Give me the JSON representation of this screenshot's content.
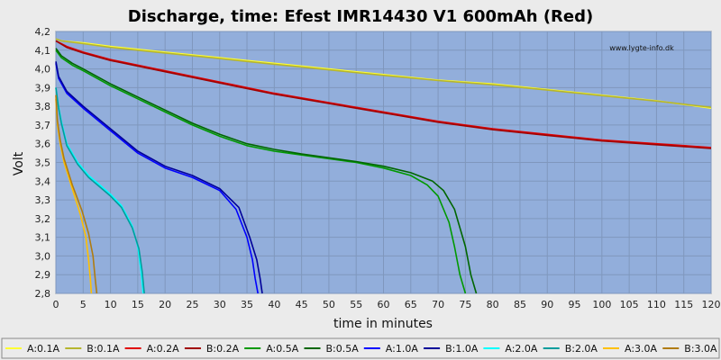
{
  "chart_data": {
    "type": "line",
    "title": "Discharge, time: Efest IMR14430 V1 600mAh (Red)",
    "watermark": "www.lygte-info.dk",
    "xlabel": "time in minutes",
    "ylabel": "Volt",
    "xlim": [
      0,
      120
    ],
    "ylim": [
      2.8,
      4.2
    ],
    "xticks": [
      0,
      5,
      10,
      15,
      20,
      25,
      30,
      35,
      40,
      45,
      50,
      55,
      60,
      65,
      70,
      75,
      80,
      85,
      90,
      95,
      100,
      105,
      110,
      115,
      120
    ],
    "yticks": [
      2.8,
      2.9,
      3.0,
      3.1,
      3.2,
      3.3,
      3.4,
      3.5,
      3.6,
      3.7,
      3.8,
      3.9,
      4.0,
      4.1,
      4.2
    ],
    "ytick_labels": [
      "2,8",
      "2,9",
      "3,0",
      "3,1",
      "3,2",
      "3,3",
      "3,4",
      "3,5",
      "3,6",
      "3,7",
      "3,8",
      "3,9",
      "4,0",
      "4,1",
      "4,2"
    ],
    "grid": true,
    "plot_bg": "#92aedb",
    "legend_position": "bottom",
    "series": [
      {
        "name": "A:0.1A",
        "color": "#ffff33",
        "x": [
          0,
          1,
          5,
          10,
          20,
          30,
          40,
          50,
          60,
          70,
          80,
          90,
          100,
          110,
          120
        ],
        "y": [
          4.16,
          4.15,
          4.14,
          4.12,
          4.09,
          4.06,
          4.03,
          4.0,
          3.97,
          3.94,
          3.92,
          3.89,
          3.86,
          3.83,
          3.79
        ]
      },
      {
        "name": "B:0.1A",
        "color": "#b5b52f",
        "x": [
          0,
          1,
          5,
          10,
          20,
          30,
          40,
          50,
          60,
          70,
          80,
          90,
          100,
          110,
          120
        ],
        "y": [
          4.16,
          4.15,
          4.135,
          4.115,
          4.085,
          4.055,
          4.025,
          3.995,
          3.965,
          3.938,
          3.915,
          3.887,
          3.857,
          3.828,
          3.795
        ]
      },
      {
        "name": "A:0.2A",
        "color": "#e00000",
        "x": [
          0,
          2,
          5,
          10,
          20,
          30,
          40,
          50,
          60,
          70,
          80,
          90,
          100,
          110,
          120
        ],
        "y": [
          4.15,
          4.12,
          4.09,
          4.05,
          3.99,
          3.93,
          3.87,
          3.82,
          3.77,
          3.72,
          3.68,
          3.65,
          3.62,
          3.6,
          3.58
        ]
      },
      {
        "name": "B:0.2A",
        "color": "#a00000",
        "x": [
          0,
          2,
          5,
          10,
          20,
          30,
          40,
          50,
          60,
          70,
          80,
          90,
          100,
          110,
          120
        ],
        "y": [
          4.15,
          4.115,
          4.085,
          4.045,
          3.985,
          3.925,
          3.865,
          3.815,
          3.765,
          3.715,
          3.675,
          3.645,
          3.615,
          3.595,
          3.575
        ]
      },
      {
        "name": "A:0.5A",
        "color": "#009900",
        "x": [
          0,
          1,
          3,
          5,
          10,
          15,
          20,
          25,
          30,
          35,
          40,
          45,
          50,
          55,
          60,
          65,
          68,
          70,
          72,
          73,
          74,
          75
        ],
        "y": [
          4.1,
          4.06,
          4.02,
          3.99,
          3.91,
          3.84,
          3.77,
          3.7,
          3.64,
          3.59,
          3.56,
          3.54,
          3.52,
          3.5,
          3.47,
          3.43,
          3.38,
          3.32,
          3.18,
          3.05,
          2.9,
          2.8
        ]
      },
      {
        "name": "B:0.5A",
        "color": "#006600",
        "x": [
          0,
          1,
          3,
          5,
          10,
          15,
          20,
          25,
          30,
          35,
          40,
          45,
          50,
          55,
          60,
          65,
          69,
          71,
          73,
          75,
          76,
          77
        ],
        "y": [
          4.11,
          4.07,
          4.03,
          4.0,
          3.92,
          3.85,
          3.78,
          3.71,
          3.65,
          3.6,
          3.57,
          3.545,
          3.525,
          3.505,
          3.48,
          3.445,
          3.4,
          3.35,
          3.25,
          3.05,
          2.9,
          2.8
        ]
      },
      {
        "name": "A:1.0A",
        "color": "#0000ff",
        "x": [
          0,
          0.5,
          2,
          5,
          10,
          15,
          20,
          25,
          30,
          33,
          35,
          36,
          36.5,
          37
        ],
        "y": [
          4.03,
          3.95,
          3.87,
          3.79,
          3.67,
          3.55,
          3.47,
          3.42,
          3.35,
          3.25,
          3.1,
          2.98,
          2.88,
          2.8
        ]
      },
      {
        "name": "B:1.0A",
        "color": "#000099",
        "x": [
          0,
          0.5,
          2,
          5,
          10,
          15,
          20,
          25,
          30,
          33.5,
          35.5,
          36.8,
          37.4,
          37.8
        ],
        "y": [
          4.04,
          3.96,
          3.88,
          3.8,
          3.68,
          3.56,
          3.48,
          3.43,
          3.36,
          3.26,
          3.1,
          2.98,
          2.88,
          2.8
        ]
      },
      {
        "name": "A:2.0A",
        "color": "#00ffff",
        "x": [
          0,
          0.5,
          1,
          2,
          4,
          6,
          8,
          10,
          12,
          14,
          15,
          15.6,
          16
        ],
        "y": [
          3.9,
          3.8,
          3.72,
          3.6,
          3.5,
          3.43,
          3.38,
          3.33,
          3.27,
          3.16,
          3.05,
          2.92,
          2.8
        ]
      },
      {
        "name": "B:2.0A",
        "color": "#009c9c",
        "x": [
          0,
          0.5,
          1,
          2,
          4,
          6,
          8,
          10,
          12,
          14,
          15.2,
          15.8,
          16.2
        ],
        "y": [
          3.9,
          3.79,
          3.71,
          3.59,
          3.49,
          3.42,
          3.37,
          3.32,
          3.26,
          3.15,
          3.04,
          2.92,
          2.8
        ]
      },
      {
        "name": "A:3.0A",
        "color": "#ffc000",
        "x": [
          0,
          0.3,
          0.8,
          1.5,
          3,
          4.5,
          5.5,
          6,
          6.3,
          6.5
        ],
        "y": [
          3.84,
          3.7,
          3.6,
          3.5,
          3.36,
          3.22,
          3.1,
          2.98,
          2.88,
          2.8
        ]
      },
      {
        "name": "B:3.0A",
        "color": "#b07c10",
        "x": [
          0,
          0.3,
          0.8,
          1.5,
          3,
          4.8,
          6,
          6.8,
          7.2,
          7.5
        ],
        "y": [
          3.86,
          3.72,
          3.62,
          3.52,
          3.38,
          3.24,
          3.12,
          3.0,
          2.88,
          2.8
        ]
      }
    ]
  }
}
